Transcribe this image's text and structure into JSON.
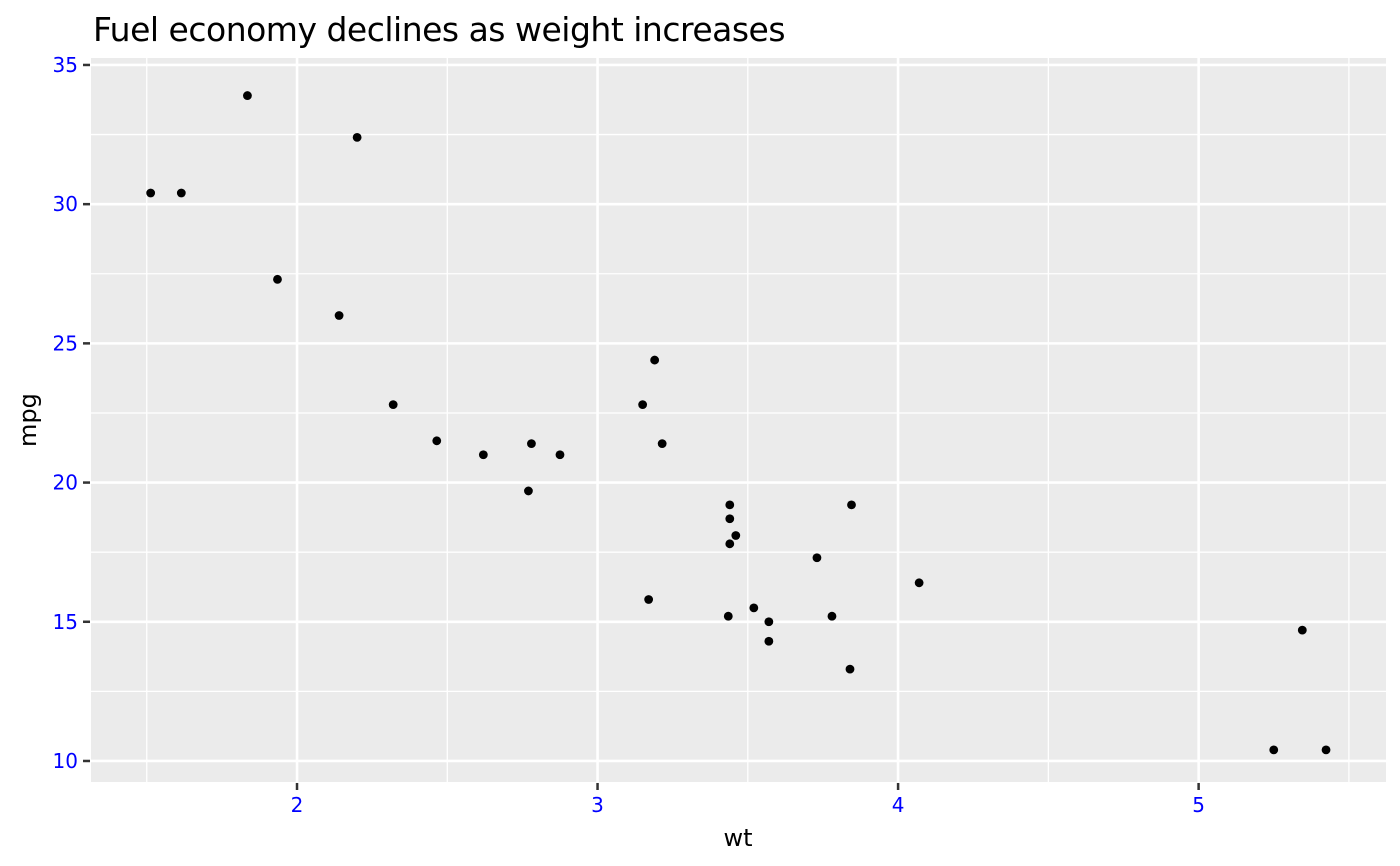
{
  "chart_data": {
    "type": "scatter",
    "title": "Fuel economy declines as weight increases",
    "xlabel": "wt",
    "ylabel": "mpg",
    "xlim": [
      1.3145,
      5.6235
    ],
    "ylim": [
      9.245,
      35.25
    ],
    "xticks": [
      2,
      3,
      4,
      5
    ],
    "yticks": [
      10,
      15,
      20,
      25,
      30,
      35
    ],
    "x_minor_ticks": [
      1.5,
      2.5,
      3.5,
      4.5,
      5.5
    ],
    "y_minor_ticks": [
      12.5,
      17.5,
      22.5,
      27.5,
      32.5
    ],
    "grid": "on",
    "legend_position": "none",
    "points": [
      {
        "wt": 2.62,
        "mpg": 21.0
      },
      {
        "wt": 2.875,
        "mpg": 21.0
      },
      {
        "wt": 2.32,
        "mpg": 22.8
      },
      {
        "wt": 3.215,
        "mpg": 21.4
      },
      {
        "wt": 3.44,
        "mpg": 18.7
      },
      {
        "wt": 3.46,
        "mpg": 18.1
      },
      {
        "wt": 3.57,
        "mpg": 14.3
      },
      {
        "wt": 3.19,
        "mpg": 24.4
      },
      {
        "wt": 3.15,
        "mpg": 22.8
      },
      {
        "wt": 3.44,
        "mpg": 19.2
      },
      {
        "wt": 3.44,
        "mpg": 17.8
      },
      {
        "wt": 4.07,
        "mpg": 16.4
      },
      {
        "wt": 3.73,
        "mpg": 17.3
      },
      {
        "wt": 3.78,
        "mpg": 15.2
      },
      {
        "wt": 5.25,
        "mpg": 10.4
      },
      {
        "wt": 5.424,
        "mpg": 10.4
      },
      {
        "wt": 5.345,
        "mpg": 14.7
      },
      {
        "wt": 2.2,
        "mpg": 32.4
      },
      {
        "wt": 1.615,
        "mpg": 30.4
      },
      {
        "wt": 1.835,
        "mpg": 33.9
      },
      {
        "wt": 2.465,
        "mpg": 21.5
      },
      {
        "wt": 3.52,
        "mpg": 15.5
      },
      {
        "wt": 3.435,
        "mpg": 15.2
      },
      {
        "wt": 3.84,
        "mpg": 13.3
      },
      {
        "wt": 3.845,
        "mpg": 19.2
      },
      {
        "wt": 1.935,
        "mpg": 27.3
      },
      {
        "wt": 2.14,
        "mpg": 26.0
      },
      {
        "wt": 1.513,
        "mpg": 30.4
      },
      {
        "wt": 3.17,
        "mpg": 15.8
      },
      {
        "wt": 2.77,
        "mpg": 19.7
      },
      {
        "wt": 3.57,
        "mpg": 15.0
      },
      {
        "wt": 2.78,
        "mpg": 21.4
      }
    ],
    "style": {
      "panel_background": "#EBEBEB",
      "grid_color": "#FFFFFF",
      "point_color": "#000000",
      "tick_label_color": "#0000FF",
      "tick_mark_color": "#333333",
      "title_color": "#000000",
      "axis_title_color": "#000000"
    }
  }
}
